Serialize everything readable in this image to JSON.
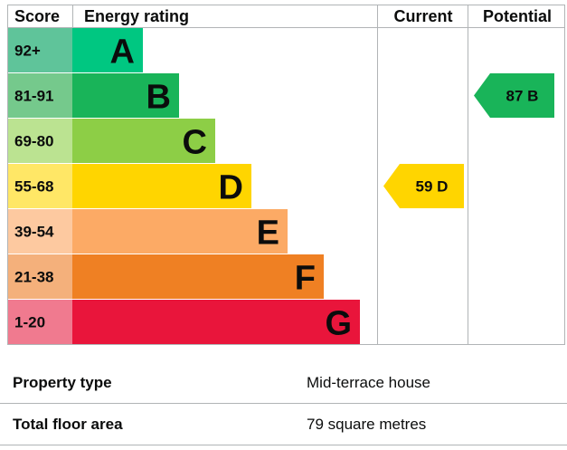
{
  "chart_data": {
    "type": "table",
    "columns": {
      "score": "Score",
      "rating": "Energy rating",
      "current": "Current",
      "potential": "Potential"
    },
    "bands": [
      {
        "score": "92+",
        "letter": "A",
        "color": "#008054",
        "score_color": "#5fc49a",
        "bar_color": "#00c781"
      },
      {
        "score": "81-91",
        "letter": "B",
        "color": "#19b459",
        "score_color": "#75c98c",
        "bar_color": "#19b459"
      },
      {
        "score": "69-80",
        "letter": "C",
        "color": "#8dce46",
        "score_color": "#bbe391",
        "bar_color": "#8dce46"
      },
      {
        "score": "55-68",
        "letter": "D",
        "color": "#ffd500",
        "score_color": "#ffe766",
        "bar_color": "#ffd500"
      },
      {
        "score": "39-54",
        "letter": "E",
        "color": "#fcaa65",
        "score_color": "#fdc9a0",
        "bar_color": "#fcaa65"
      },
      {
        "score": "21-38",
        "letter": "F",
        "color": "#ef8023",
        "score_color": "#f4b07b",
        "bar_color": "#ef8023"
      },
      {
        "score": "1-20",
        "letter": "G",
        "color": "#e9153b",
        "score_color": "#f07a8f",
        "bar_color": "#e9153b"
      }
    ],
    "current": {
      "value": 59,
      "letter": "D",
      "color": "#ffd500"
    },
    "potential": {
      "value": 87,
      "letter": "B",
      "color": "#19b459"
    }
  },
  "property": {
    "rows": [
      {
        "label": "Property type",
        "value": "Mid-terrace house"
      },
      {
        "label": "Total floor area",
        "value": "79 square metres"
      }
    ]
  }
}
